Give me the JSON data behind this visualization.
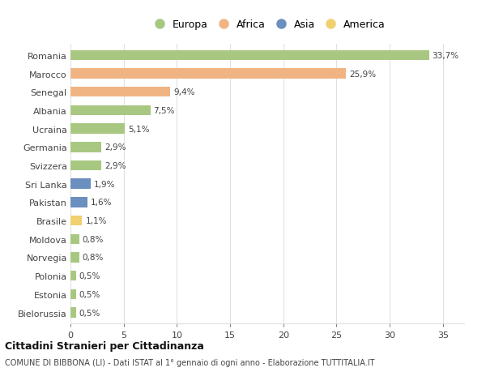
{
  "countries": [
    "Romania",
    "Marocco",
    "Senegal",
    "Albania",
    "Ucraina",
    "Germania",
    "Svizzera",
    "Sri Lanka",
    "Pakistan",
    "Brasile",
    "Moldova",
    "Norvegia",
    "Polonia",
    "Estonia",
    "Bielorussia"
  ],
  "values": [
    33.7,
    25.9,
    9.4,
    7.5,
    5.1,
    2.9,
    2.9,
    1.9,
    1.6,
    1.1,
    0.8,
    0.8,
    0.5,
    0.5,
    0.5
  ],
  "labels": [
    "33,7%",
    "25,9%",
    "9,4%",
    "7,5%",
    "5,1%",
    "2,9%",
    "2,9%",
    "1,9%",
    "1,6%",
    "1,1%",
    "0,8%",
    "0,8%",
    "0,5%",
    "0,5%",
    "0,5%"
  ],
  "continents": [
    "Europa",
    "Africa",
    "Africa",
    "Europa",
    "Europa",
    "Europa",
    "Europa",
    "Asia",
    "Asia",
    "America",
    "Europa",
    "Europa",
    "Europa",
    "Europa",
    "Europa"
  ],
  "continent_colors": {
    "Europa": "#a8c882",
    "Africa": "#f0b482",
    "Asia": "#6b8fbe",
    "America": "#f0d070"
  },
  "legend_order": [
    "Europa",
    "Africa",
    "Asia",
    "America"
  ],
  "title": "Cittadini Stranieri per Cittadinanza",
  "subtitle": "COMUNE DI BIBBONA (LI) - Dati ISTAT al 1° gennaio di ogni anno - Elaborazione TUTTITALIA.IT",
  "xlim": [
    0,
    37
  ],
  "xticks": [
    0,
    5,
    10,
    15,
    20,
    25,
    30,
    35
  ],
  "bg_color": "#ffffff",
  "grid_color": "#e0e0e0",
  "bar_height": 0.55
}
